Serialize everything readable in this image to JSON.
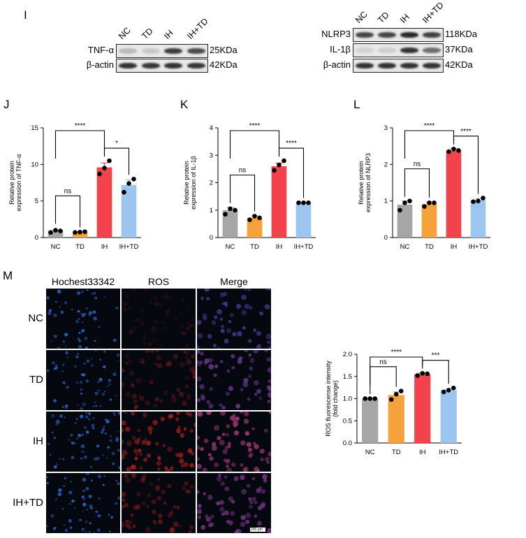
{
  "panel_I": {
    "letter": "I",
    "left_blot": {
      "lanes": [
        "NC",
        "TD",
        "IH",
        "IH+TD"
      ],
      "rows": [
        {
          "label": "TNF-α",
          "size": "25KDa",
          "intensity": [
            0.22,
            0.15,
            0.85,
            0.78
          ]
        },
        {
          "label": "β-actin",
          "size": "42KDa",
          "intensity": [
            0.9,
            0.88,
            0.9,
            0.88
          ]
        }
      ]
    },
    "right_blot": {
      "lanes": [
        "NC",
        "TD",
        "IH",
        "IH+TD"
      ],
      "rows": [
        {
          "label": "NLRP3",
          "size": "118KDa",
          "intensity": [
            0.8,
            0.8,
            0.95,
            0.82
          ]
        },
        {
          "label": "IL-1β",
          "size": "37KDa",
          "intensity": [
            0.1,
            0.12,
            0.9,
            0.6
          ]
        },
        {
          "label": "β-actin",
          "size": "42KDa",
          "intensity": [
            0.9,
            0.9,
            0.9,
            0.9
          ]
        }
      ]
    }
  },
  "panel_M": {
    "letter": "M",
    "columns": [
      "Hochest33342",
      "ROS",
      "Merge"
    ],
    "rows": [
      "NC",
      "TD",
      "IH",
      "IH+TD"
    ],
    "ros_intensity": [
      0.15,
      0.35,
      0.75,
      0.45
    ],
    "scale_bar": "200 μm"
  },
  "colors": {
    "NC": "#a6a6a6",
    "TD": "#f5a23c",
    "IH": "#f2424c",
    "IH+TD": "#9cc5ef"
  },
  "chart_data": [
    {
      "id": "J",
      "type": "bar",
      "letter": "J",
      "categories": [
        "NC",
        "TD",
        "IH",
        "IH+TD"
      ],
      "values": [
        0.9,
        0.75,
        9.6,
        7.2
      ],
      "errors": [
        0.15,
        0.08,
        0.6,
        0.7
      ],
      "points": [
        [
          0.7,
          1.0,
          0.9
        ],
        [
          0.7,
          0.75,
          0.8
        ],
        [
          8.7,
          9.5,
          10.5
        ],
        [
          6.2,
          7.4,
          8.0
        ]
      ],
      "ylabel_lines": [
        "Relative protein",
        "expression of TNF-α"
      ],
      "ylim": [
        0,
        15
      ],
      "yticks": [
        0,
        5,
        10,
        15
      ],
      "significance": [
        {
          "from": 0,
          "to": 1,
          "label": "ns"
        },
        {
          "from": 0,
          "to": 2,
          "label": "****"
        },
        {
          "from": 2,
          "to": 3,
          "label": "*"
        }
      ]
    },
    {
      "id": "K",
      "type": "bar",
      "letter": "K",
      "categories": [
        "NC",
        "TD",
        "IH",
        "IH+TD"
      ],
      "values": [
        1.0,
        0.72,
        2.6,
        1.27
      ],
      "errors": [
        0.1,
        0.08,
        0.12,
        0.02
      ],
      "points": [
        [
          0.85,
          1.05,
          1.0
        ],
        [
          0.65,
          0.78,
          0.72
        ],
        [
          2.45,
          2.65,
          2.8
        ],
        [
          1.27,
          1.27,
          1.27
        ]
      ],
      "ylabel_lines": [
        "Relative protein",
        "expression of IL-1β"
      ],
      "ylim": [
        0,
        4
      ],
      "yticks": [
        0,
        1,
        2,
        3,
        4
      ],
      "significance": [
        {
          "from": 0,
          "to": 1,
          "label": "ns"
        },
        {
          "from": 0,
          "to": 2,
          "label": "****"
        },
        {
          "from": 2,
          "to": 3,
          "label": "****"
        }
      ]
    },
    {
      "id": "L",
      "type": "bar",
      "letter": "L",
      "categories": [
        "NC",
        "TD",
        "IH",
        "IH+TD"
      ],
      "values": [
        0.9,
        0.92,
        2.38,
        1.02
      ],
      "errors": [
        0.1,
        0.06,
        0.05,
        0.05
      ],
      "points": [
        [
          0.75,
          0.95,
          1.0
        ],
        [
          0.85,
          0.95,
          0.95
        ],
        [
          2.35,
          2.42,
          2.38
        ],
        [
          0.98,
          1.0,
          1.08
        ]
      ],
      "ylabel_lines": [
        "Relative protein",
        "expression of NLRP3"
      ],
      "ylim": [
        0,
        3
      ],
      "yticks": [
        0,
        1,
        2,
        3
      ],
      "significance": [
        {
          "from": 0,
          "to": 1,
          "label": "ns"
        },
        {
          "from": 0,
          "to": 2,
          "label": "****"
        },
        {
          "from": 2,
          "to": 3,
          "label": "****"
        }
      ]
    },
    {
      "id": "ROS",
      "type": "bar",
      "letter": "",
      "categories": [
        "NC",
        "TD",
        "IH",
        "IH+TD"
      ],
      "values": [
        1.0,
        1.08,
        1.55,
        1.19
      ],
      "errors": [
        0.01,
        0.07,
        0.03,
        0.03
      ],
      "points": [
        [
          1.0,
          1.0,
          1.0
        ],
        [
          0.98,
          1.1,
          1.17
        ],
        [
          1.52,
          1.57,
          1.56
        ],
        [
          1.15,
          1.19,
          1.24
        ]
      ],
      "ylabel_lines": [
        "ROS fluorescense intensity",
        "(fold change)"
      ],
      "ylim": [
        0,
        2
      ],
      "yticks": [
        0.0,
        0.5,
        1.0,
        1.5,
        2.0
      ],
      "ytick_decimals": 1,
      "significance": [
        {
          "from": 0,
          "to": 1,
          "label": "ns"
        },
        {
          "from": 0,
          "to": 2,
          "label": "****"
        },
        {
          "from": 2,
          "to": 3,
          "label": "***"
        }
      ]
    }
  ]
}
